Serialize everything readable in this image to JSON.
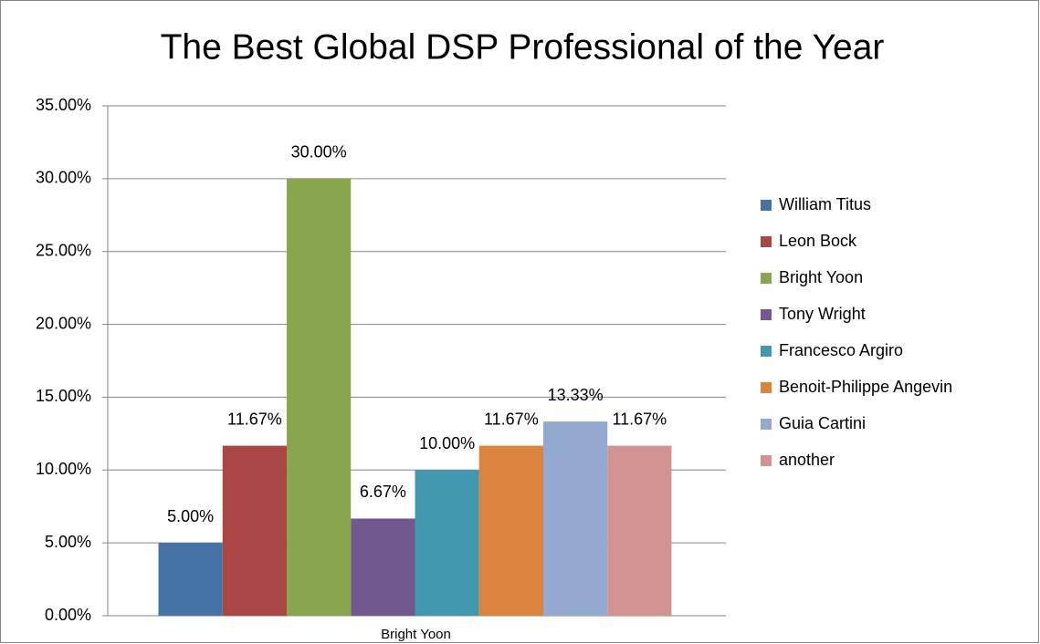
{
  "chart_data": {
    "type": "bar",
    "title": "The Best Global DSP Professional of the Year",
    "categories": [
      "Bright Yoon"
    ],
    "series": [
      {
        "name": "William Titus",
        "color": "#4572a7",
        "values": [
          5
        ],
        "value_labels": [
          "5.00%"
        ]
      },
      {
        "name": "Leon Bock",
        "color": "#aa4643",
        "values": [
          11.67
        ],
        "value_labels": [
          "11.67%"
        ]
      },
      {
        "name": "Bright Yoon",
        "color": "#89a54e",
        "values": [
          30
        ],
        "value_labels": [
          "30.00%"
        ]
      },
      {
        "name": "Tony Wright",
        "color": "#71588f",
        "values": [
          6.67
        ],
        "value_labels": [
          "6.67%"
        ]
      },
      {
        "name": "Francesco Argiro",
        "color": "#4198af",
        "values": [
          10
        ],
        "value_labels": [
          "10.00%"
        ]
      },
      {
        "name": "Benoit-Philippe Angevin",
        "color": "#db843d",
        "values": [
          11.67
        ],
        "value_labels": [
          "11.67%"
        ]
      },
      {
        "name": "Guia Cartini",
        "color": "#93a9cf",
        "values": [
          13.33
        ],
        "value_labels": [
          "13.33%"
        ]
      },
      {
        "name": "another",
        "color": "#d19392",
        "values": [
          11.67
        ],
        "value_labels": [
          "11.67%"
        ]
      }
    ],
    "ylim": [
      0,
      35
    ],
    "yticks": [
      {
        "value": 0,
        "label": "0.00%"
      },
      {
        "value": 5,
        "label": "5.00%"
      },
      {
        "value": 10,
        "label": "10.00%"
      },
      {
        "value": 15,
        "label": "15.00%"
      },
      {
        "value": 20,
        "label": "20.00%"
      },
      {
        "value": 25,
        "label": "25.00%"
      },
      {
        "value": 30,
        "label": "30.00%"
      },
      {
        "value": 35,
        "label": "35.00%"
      }
    ],
    "grid": true,
    "legend": "right"
  }
}
